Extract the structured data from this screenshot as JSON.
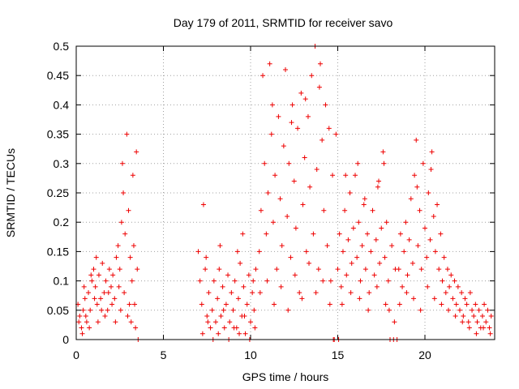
{
  "chart_data": {
    "type": "scatter",
    "title": "Day 179 of 2011, SRMTID for receiver savo",
    "xlabel": "GPS time / hours",
    "ylabel": "SRMTID / TECUs",
    "xlim": [
      0,
      24
    ],
    "ylim": [
      0,
      0.5
    ],
    "x_ticks": [
      0,
      5,
      10,
      15,
      20
    ],
    "x_tick_labels": [
      "0",
      "5",
      "10",
      "15",
      "20"
    ],
    "y_ticks": [
      0,
      0.05,
      0.1,
      0.15,
      0.2,
      0.25,
      0.3,
      0.35,
      0.4,
      0.45,
      0.5
    ],
    "y_tick_labels": [
      "0",
      "0.05",
      "0.1",
      "0.15",
      "0.2",
      "0.25",
      "0.3",
      "0.35",
      "0.4",
      "0.45",
      "0.5"
    ],
    "grid": true,
    "marker": "+",
    "series": [
      {
        "name": "SRMTID",
        "color": "#ee0000",
        "points": [
          [
            0.1,
            0.06
          ],
          [
            0.2,
            0.04
          ],
          [
            0.3,
            0.02
          ],
          [
            0.4,
            0.05
          ],
          [
            0.5,
            0.07
          ],
          [
            0.6,
            0.03
          ],
          [
            0.7,
            0.08
          ],
          [
            0.8,
            0.05
          ],
          [
            0.9,
            0.1
          ],
          [
            1.0,
            0.12
          ],
          [
            1.1,
            0.09
          ],
          [
            1.2,
            0.06
          ],
          [
            1.3,
            0.11
          ],
          [
            1.4,
            0.07
          ],
          [
            1.5,
            0.13
          ],
          [
            1.6,
            0.08
          ],
          [
            1.7,
            0.1
          ],
          [
            1.8,
            0.05
          ],
          [
            1.9,
            0.12
          ],
          [
            2.0,
            0.09
          ],
          [
            2.1,
            0.11
          ],
          [
            2.2,
            0.07
          ],
          [
            2.3,
            0.14
          ],
          [
            2.4,
            0.16
          ],
          [
            2.5,
            0.12
          ],
          [
            2.6,
            0.2
          ],
          [
            2.65,
            0.3
          ],
          [
            2.7,
            0.25
          ],
          [
            2.8,
            0.18
          ],
          [
            2.9,
            0.35
          ],
          [
            3.0,
            0.22
          ],
          [
            3.1,
            0.14
          ],
          [
            3.2,
            0.1
          ],
          [
            3.25,
            0.28
          ],
          [
            3.3,
            0.16
          ],
          [
            3.35,
            0.06
          ],
          [
            3.4,
            0.02
          ],
          [
            3.45,
            0.32
          ],
          [
            3.5,
            0.12
          ],
          [
            3.55,
            0.0
          ],
          [
            0.15,
            0.03
          ],
          [
            0.35,
            0.01
          ],
          [
            0.55,
            0.04
          ],
          [
            0.75,
            0.02
          ],
          [
            1.05,
            0.07
          ],
          [
            1.25,
            0.03
          ],
          [
            1.45,
            0.05
          ],
          [
            1.65,
            0.04
          ],
          [
            1.85,
            0.08
          ],
          [
            2.05,
            0.06
          ],
          [
            2.25,
            0.03
          ],
          [
            2.45,
            0.09
          ],
          [
            2.55,
            0.05
          ],
          [
            2.75,
            0.08
          ],
          [
            2.95,
            0.04
          ],
          [
            3.05,
            0.06
          ],
          [
            3.15,
            0.03
          ],
          [
            0.45,
            0.09
          ],
          [
            0.85,
            0.11
          ],
          [
            1.15,
            0.14
          ],
          [
            7.0,
            0.15
          ],
          [
            7.1,
            0.1
          ],
          [
            7.2,
            0.06
          ],
          [
            7.3,
            0.23
          ],
          [
            7.4,
            0.12
          ],
          [
            7.5,
            0.04
          ],
          [
            7.6,
            0.08
          ],
          [
            7.7,
            0.02
          ],
          [
            7.8,
            0.05
          ],
          [
            7.9,
            0.1
          ],
          [
            8.0,
            0.03
          ],
          [
            8.1,
            0.07
          ],
          [
            8.2,
            0.12
          ],
          [
            8.3,
            0.04
          ],
          [
            8.4,
            0.09
          ],
          [
            8.5,
            0.02
          ],
          [
            8.6,
            0.06
          ],
          [
            8.7,
            0.11
          ],
          [
            8.8,
            0.03
          ],
          [
            8.9,
            0.08
          ],
          [
            9.0,
            0.05
          ],
          [
            9.1,
            0.1
          ],
          [
            9.2,
            0.02
          ],
          [
            9.3,
            0.07
          ],
          [
            9.4,
            0.13
          ],
          [
            9.5,
            0.04
          ],
          [
            9.6,
            0.09
          ],
          [
            9.7,
            0.01
          ],
          [
            9.8,
            0.06
          ],
          [
            9.9,
            0.11
          ],
          [
            10.0,
            0.03
          ],
          [
            10.1,
            0.08
          ],
          [
            10.2,
            0.05
          ],
          [
            10.3,
            0.12
          ],
          [
            7.25,
            0.01
          ],
          [
            7.55,
            0.03
          ],
          [
            7.85,
            0.0
          ],
          [
            8.15,
            0.01
          ],
          [
            8.45,
            0.05
          ],
          [
            8.75,
            0.0
          ],
          [
            9.05,
            0.02
          ],
          [
            9.35,
            0.01
          ],
          [
            9.65,
            0.04
          ],
          [
            9.95,
            0.0
          ],
          [
            10.25,
            0.02
          ],
          [
            7.45,
            0.14
          ],
          [
            8.25,
            0.16
          ],
          [
            9.25,
            0.15
          ],
          [
            9.55,
            0.18
          ],
          [
            10.15,
            0.1
          ],
          [
            10.5,
            0.15
          ],
          [
            10.6,
            0.22
          ],
          [
            10.7,
            0.45
          ],
          [
            10.8,
            0.3
          ],
          [
            10.9,
            0.18
          ],
          [
            11.0,
            0.25
          ],
          [
            11.1,
            0.47
          ],
          [
            11.2,
            0.35
          ],
          [
            11.3,
            0.2
          ],
          [
            11.4,
            0.28
          ],
          [
            11.5,
            0.12
          ],
          [
            11.6,
            0.38
          ],
          [
            11.7,
            0.24
          ],
          [
            11.8,
            0.16
          ],
          [
            11.9,
            0.33
          ],
          [
            12.0,
            0.46
          ],
          [
            12.1,
            0.21
          ],
          [
            12.2,
            0.3
          ],
          [
            12.3,
            0.14
          ],
          [
            12.4,
            0.4
          ],
          [
            12.5,
            0.27
          ],
          [
            12.6,
            0.19
          ],
          [
            12.7,
            0.36
          ],
          [
            12.8,
            0.08
          ],
          [
            12.9,
            0.42
          ],
          [
            13.0,
            0.23
          ],
          [
            13.1,
            0.31
          ],
          [
            13.2,
            0.15
          ],
          [
            13.3,
            0.38
          ],
          [
            13.4,
            0.26
          ],
          [
            13.5,
            0.45
          ],
          [
            13.6,
            0.18
          ],
          [
            13.7,
            0.5
          ],
          [
            13.8,
            0.29
          ],
          [
            13.9,
            0.12
          ],
          [
            14.0,
            0.47
          ],
          [
            14.1,
            0.34
          ],
          [
            14.2,
            0.22
          ],
          [
            14.3,
            0.4
          ],
          [
            14.4,
            0.16
          ],
          [
            14.5,
            0.36
          ],
          [
            14.6,
            0.1
          ],
          [
            14.7,
            0.28
          ],
          [
            14.8,
            0.0
          ],
          [
            14.9,
            0.35
          ],
          [
            10.55,
            0.08
          ],
          [
            10.95,
            0.1
          ],
          [
            11.35,
            0.06
          ],
          [
            11.75,
            0.09
          ],
          [
            12.15,
            0.05
          ],
          [
            12.55,
            0.11
          ],
          [
            12.95,
            0.07
          ],
          [
            13.35,
            0.13
          ],
          [
            13.75,
            0.08
          ],
          [
            14.15,
            0.1
          ],
          [
            14.55,
            0.06
          ],
          [
            11.25,
            0.4
          ],
          [
            12.35,
            0.37
          ],
          [
            13.15,
            0.41
          ],
          [
            13.95,
            0.43
          ],
          [
            15.0,
            0.12
          ],
          [
            15.1,
            0.18
          ],
          [
            15.2,
            0.09
          ],
          [
            15.3,
            0.15
          ],
          [
            15.4,
            0.22
          ],
          [
            15.5,
            0.11
          ],
          [
            15.6,
            0.17
          ],
          [
            15.7,
            0.25
          ],
          [
            15.8,
            0.13
          ],
          [
            15.9,
            0.19
          ],
          [
            16.0,
            0.28
          ],
          [
            16.1,
            0.14
          ],
          [
            16.2,
            0.2
          ],
          [
            16.3,
            0.1
          ],
          [
            16.4,
            0.16
          ],
          [
            16.5,
            0.23
          ],
          [
            16.6,
            0.12
          ],
          [
            16.7,
            0.18
          ],
          [
            16.8,
            0.08
          ],
          [
            16.9,
            0.15
          ],
          [
            17.0,
            0.22
          ],
          [
            17.1,
            0.11
          ],
          [
            17.2,
            0.17
          ],
          [
            17.3,
            0.26
          ],
          [
            17.4,
            0.13
          ],
          [
            17.5,
            0.19
          ],
          [
            17.6,
            0.32
          ],
          [
            17.7,
            0.14
          ],
          [
            17.8,
            0.2
          ],
          [
            17.9,
            0.1
          ],
          [
            18.0,
            0.0
          ],
          [
            18.1,
            0.16
          ],
          [
            18.2,
            0.0
          ],
          [
            18.3,
            0.12
          ],
          [
            18.4,
            0.0
          ],
          [
            15.25,
            0.06
          ],
          [
            15.75,
            0.08
          ],
          [
            16.25,
            0.07
          ],
          [
            16.75,
            0.05
          ],
          [
            17.25,
            0.09
          ],
          [
            17.75,
            0.06
          ],
          [
            15.45,
            0.28
          ],
          [
            16.15,
            0.3
          ],
          [
            16.55,
            0.24
          ],
          [
            17.35,
            0.27
          ],
          [
            17.65,
            0.3
          ],
          [
            15.05,
            0.0
          ],
          [
            14.75,
            0.0
          ],
          [
            17.95,
            0.05
          ],
          [
            18.25,
            0.03
          ],
          [
            18.5,
            0.12
          ],
          [
            18.6,
            0.18
          ],
          [
            18.7,
            0.09
          ],
          [
            18.8,
            0.15
          ],
          [
            18.9,
            0.2
          ],
          [
            19.0,
            0.11
          ],
          [
            19.1,
            0.17
          ],
          [
            19.2,
            0.24
          ],
          [
            19.3,
            0.13
          ],
          [
            19.4,
            0.28
          ],
          [
            19.5,
            0.34
          ],
          [
            19.6,
            0.16
          ],
          [
            19.7,
            0.22
          ],
          [
            19.8,
            0.12
          ],
          [
            19.9,
            0.3
          ],
          [
            20.0,
            0.19
          ],
          [
            20.1,
            0.14
          ],
          [
            20.2,
            0.25
          ],
          [
            20.3,
            0.17
          ],
          [
            20.4,
            0.32
          ],
          [
            20.5,
            0.21
          ],
          [
            20.6,
            0.15
          ],
          [
            20.7,
            0.23
          ],
          [
            20.8,
            0.12
          ],
          [
            20.9,
            0.18
          ],
          [
            21.0,
            0.1
          ],
          [
            21.1,
            0.14
          ],
          [
            21.2,
            0.08
          ],
          [
            21.3,
            0.12
          ],
          [
            21.4,
            0.09
          ],
          [
            21.5,
            0.11
          ],
          [
            21.6,
            0.07
          ],
          [
            21.7,
            0.1
          ],
          [
            21.8,
            0.06
          ],
          [
            21.9,
            0.09
          ],
          [
            22.0,
            0.05
          ],
          [
            22.1,
            0.08
          ],
          [
            22.2,
            0.04
          ],
          [
            22.3,
            0.07
          ],
          [
            22.4,
            0.06
          ],
          [
            22.5,
            0.03
          ],
          [
            22.6,
            0.08
          ],
          [
            22.7,
            0.05
          ],
          [
            22.8,
            0.04
          ],
          [
            22.9,
            0.06
          ],
          [
            23.0,
            0.03
          ],
          [
            23.1,
            0.05
          ],
          [
            23.2,
            0.02
          ],
          [
            23.3,
            0.04
          ],
          [
            23.4,
            0.06
          ],
          [
            23.5,
            0.03
          ],
          [
            23.6,
            0.05
          ],
          [
            23.7,
            0.02
          ],
          [
            23.8,
            0.04
          ],
          [
            18.55,
            0.06
          ],
          [
            18.95,
            0.08
          ],
          [
            19.35,
            0.07
          ],
          [
            19.75,
            0.05
          ],
          [
            20.15,
            0.09
          ],
          [
            20.55,
            0.07
          ],
          [
            20.95,
            0.06
          ],
          [
            21.35,
            0.05
          ],
          [
            21.75,
            0.04
          ],
          [
            22.15,
            0.03
          ],
          [
            22.55,
            0.02
          ],
          [
            22.95,
            0.01
          ],
          [
            23.35,
            0.02
          ],
          [
            23.75,
            0.01
          ],
          [
            19.55,
            0.26
          ],
          [
            20.35,
            0.29
          ]
        ]
      }
    ]
  }
}
